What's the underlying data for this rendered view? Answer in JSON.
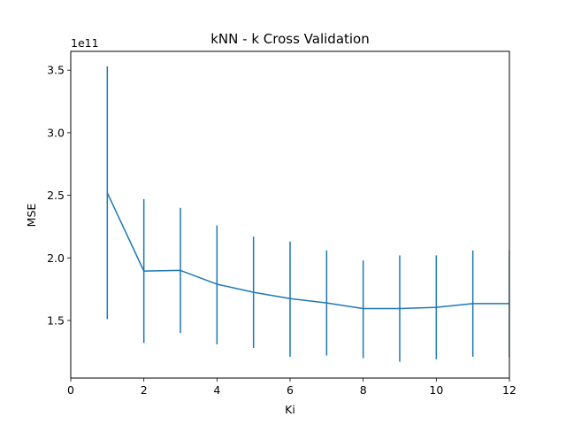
{
  "chart_data": {
    "type": "line",
    "title": "kNN - k Cross Validation",
    "xlabel": "Ki",
    "ylabel": "MSE",
    "y_offset_label": "1e11",
    "xlim": [
      0,
      12
    ],
    "ylim": [
      1.04,
      3.65
    ],
    "x_ticks": [
      "0",
      "2",
      "4",
      "6",
      "8",
      "10",
      "12"
    ],
    "y_ticks": [
      "1.5",
      "2.0",
      "2.5",
      "3.0",
      "3.5"
    ],
    "grid": false,
    "line_color": "#1f77b4",
    "series": [
      {
        "x": [
          1,
          2,
          3,
          4,
          5,
          6,
          7,
          8,
          9,
          10,
          11,
          12
        ],
        "y": [
          2.52,
          1.895,
          1.9,
          1.79,
          1.725,
          1.675,
          1.64,
          1.595,
          1.595,
          1.605,
          1.635,
          1.635
        ],
        "error_low": [
          1.51,
          1.32,
          1.4,
          1.31,
          1.28,
          1.21,
          1.22,
          1.2,
          1.17,
          1.19,
          1.21,
          1.21
        ],
        "error_high": [
          3.53,
          2.47,
          2.4,
          2.26,
          2.17,
          2.13,
          2.06,
          1.98,
          2.02,
          2.02,
          2.06,
          2.06
        ]
      }
    ]
  }
}
